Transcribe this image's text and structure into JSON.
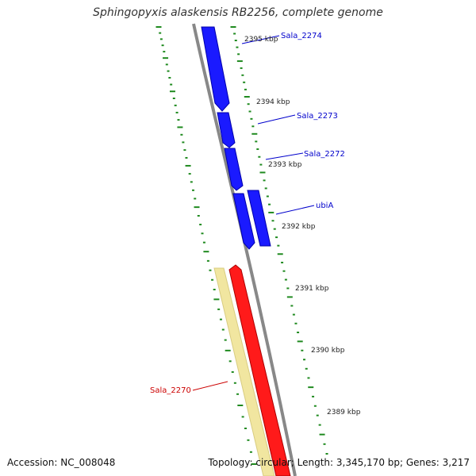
{
  "title": "Sphingopyxis alaskensis RB2256, complete genome",
  "footer": {
    "accession": "Accession: NC_008048",
    "topology": "Topology: circular; Length: 3,345,170 bp; Genes: 3,217"
  },
  "colors": {
    "forward_gene": "#1a1aff",
    "reverse_gene": "#ff1a1a",
    "rna_gene": "#f1e6a0",
    "backbone": "#888888",
    "ticks": "#1f8a1f",
    "label_blue": "#0000cc",
    "label_red": "#cc0000"
  },
  "scale_labels": [
    "2395 kbp",
    "2394 kbp",
    "2393 kbp",
    "2392 kbp",
    "2391 kbp",
    "2390 kbp",
    "2389 kbp"
  ],
  "gene_labels": [
    "Sala_2274",
    "Sala_2273",
    "Sala_2272",
    "ubiA",
    "Sala_2270"
  ]
}
